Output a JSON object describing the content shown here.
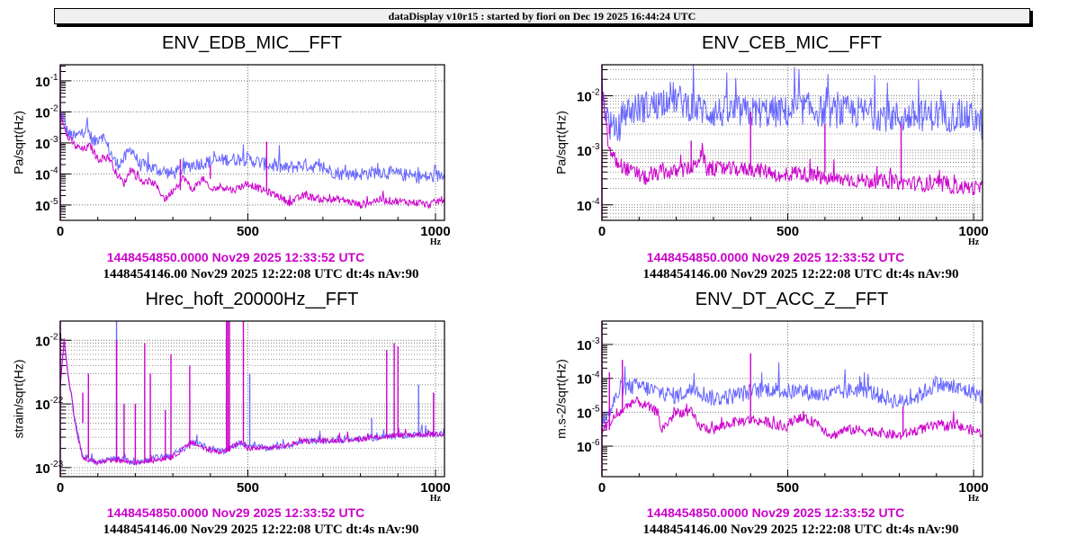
{
  "header": {
    "text": "dataDisplay v10r15 : started by fiori on Dec 19 2025 16:44:24 UTC"
  },
  "colors": {
    "reference": "#6666ff",
    "current": "#cc00cc"
  },
  "panels": [
    {
      "title": "ENV_EDB_MIC__FFT",
      "time_magenta": "1448454850.0000 Nov29 2025 12:33:52 UTC",
      "time_black": "1448454146.00 Nov29 2025 12:22:08 UTC dt:4s nAv:90"
    },
    {
      "title": "ENV_CEB_MIC__FFT",
      "time_magenta": "1448454850.0000 Nov29 2025 12:33:52 UTC",
      "time_black": "1448454146.00 Nov29 2025 12:22:08 UTC dt:4s nAv:90"
    },
    {
      "title": "Hrec_hoft_20000Hz__FFT",
      "time_magenta": "1448454850.0000 Nov29 2025 12:33:52 UTC",
      "time_black": "1448454146.00 Nov29 2025 12:22:08 UTC dt:4s nAv:90"
    },
    {
      "title": "ENV_DT_ACC_Z__FFT",
      "time_magenta": "1448454850.0000 Nov29 2025 12:33:52 UTC",
      "time_black": "1448454146.00 Nov29 2025 12:22:08 UTC dt:4s nAv:90"
    }
  ],
  "chart_data": [
    {
      "type": "line",
      "title": "ENV_EDB_MIC__FFT",
      "xlabel": "Hz",
      "ylabel": "Pa/sqrt(Hz)",
      "xlim": [
        0,
        1024
      ],
      "ylim": [
        3.2e-06,
        0.33
      ],
      "log_y": true,
      "xticks": [
        0,
        500,
        1000
      ],
      "yticks_exp": [
        -1,
        -2,
        -3,
        -4,
        -5
      ],
      "grid": "decades",
      "series": [
        {
          "color": "#6666ff",
          "points": [
            [
              0,
              0.01
            ],
            [
              10,
              0.005
            ],
            [
              20,
              0.002
            ],
            [
              40,
              0.0015
            ],
            [
              70,
              0.003
            ],
            [
              90,
              0.001
            ],
            [
              110,
              0.002
            ],
            [
              130,
              0.0006
            ],
            [
              150,
              0.0002
            ],
            [
              170,
              0.0003
            ],
            [
              190,
              0.0007
            ],
            [
              210,
              0.0002
            ],
            [
              250,
              0.00015
            ],
            [
              300,
              0.0001
            ],
            [
              350,
              0.0002
            ],
            [
              400,
              0.00025
            ],
            [
              450,
              0.0003
            ],
            [
              500,
              0.0003
            ],
            [
              550,
              0.0002
            ],
            [
              600,
              0.00015
            ],
            [
              650,
              0.0002
            ],
            [
              700,
              0.00015
            ],
            [
              750,
              0.0001
            ],
            [
              800,
              0.0001
            ],
            [
              850,
              0.00012
            ],
            [
              900,
              0.0001
            ],
            [
              950,
              8e-05
            ],
            [
              1000,
              8e-05
            ],
            [
              1020,
              0.0001
            ]
          ],
          "lines": []
        },
        {
          "color": "#cc00cc",
          "points": [
            [
              0,
              0.015
            ],
            [
              10,
              0.003
            ],
            [
              20,
              0.0015
            ],
            [
              40,
              0.0008
            ],
            [
              60,
              0.0006
            ],
            [
              80,
              0.0008
            ],
            [
              100,
              0.0003
            ],
            [
              130,
              0.00035
            ],
            [
              150,
              0.0001
            ],
            [
              170,
              5e-05
            ],
            [
              190,
              0.00015
            ],
            [
              210,
              6e-05
            ],
            [
              250,
              5e-05
            ],
            [
              280,
              1.5e-05
            ],
            [
              300,
              3e-05
            ],
            [
              330,
              8e-05
            ],
            [
              350,
              3e-05
            ],
            [
              380,
              7e-05
            ],
            [
              400,
              3e-05
            ],
            [
              430,
              4e-05
            ],
            [
              460,
              3e-05
            ],
            [
              500,
              5e-05
            ],
            [
              540,
              3e-05
            ],
            [
              580,
              2e-05
            ],
            [
              610,
              1.2e-05
            ],
            [
              650,
              2e-05
            ],
            [
              700,
              1.5e-05
            ],
            [
              750,
              1.5e-05
            ],
            [
              800,
              1e-05
            ],
            [
              850,
              1.5e-05
            ],
            [
              900,
              1.3e-05
            ],
            [
              950,
              1.2e-05
            ],
            [
              980,
              1e-05
            ],
            [
              1020,
              1.5e-05
            ]
          ],
          "lines": [
            [
              550,
              0.0011
            ],
            [
              400,
              0.0002
            ],
            [
              320,
              0.0003
            ]
          ]
        }
      ]
    },
    {
      "type": "line",
      "title": "ENV_CEB_MIC__FFT",
      "xlabel": "Hz",
      "ylabel": "Pa/sqrt(Hz)",
      "xlim": [
        0,
        1024
      ],
      "ylim": [
        5.2e-05,
        0.037
      ],
      "log_y": true,
      "xticks": [
        0,
        500,
        1000
      ],
      "yticks_exp": [
        -2,
        -3,
        -4
      ],
      "grid": "minor",
      "series": [
        {
          "color": "#6666ff",
          "points": [
            [
              0,
              0.01
            ],
            [
              20,
              0.003
            ],
            [
              40,
              0.002
            ],
            [
              60,
              0.005
            ],
            [
              100,
              0.006
            ],
            [
              150,
              0.007
            ],
            [
              180,
              0.01
            ],
            [
              250,
              0.006
            ],
            [
              300,
              0.005
            ],
            [
              400,
              0.005
            ],
            [
              500,
              0.005
            ],
            [
              550,
              0.006
            ],
            [
              600,
              0.005
            ],
            [
              700,
              0.005
            ],
            [
              800,
              0.004
            ],
            [
              900,
              0.0045
            ],
            [
              1000,
              0.004
            ],
            [
              1020,
              0.003
            ]
          ],
          "lines": []
        },
        {
          "color": "#cc00cc",
          "points": [
            [
              0,
              0.015
            ],
            [
              10,
              0.003
            ],
            [
              20,
              0.001
            ],
            [
              40,
              0.0006
            ],
            [
              80,
              0.0004
            ],
            [
              120,
              0.0003
            ],
            [
              160,
              0.0004
            ],
            [
              200,
              0.0004
            ],
            [
              250,
              0.0005
            ],
            [
              270,
              0.001
            ],
            [
              280,
              0.00045
            ],
            [
              400,
              0.00045
            ],
            [
              460,
              0.0004
            ],
            [
              480,
              0.0003
            ],
            [
              520,
              0.0004
            ],
            [
              600,
              0.0003
            ],
            [
              700,
              0.00028
            ],
            [
              800,
              0.00026
            ],
            [
              900,
              0.00023
            ],
            [
              1020,
              0.0002
            ]
          ],
          "lines": [
            [
              400,
              0.005
            ],
            [
              600,
              0.003
            ],
            [
              805,
              0.003
            ],
            [
              240,
              0.0015
            ],
            [
              20,
              0.002
            ]
          ]
        }
      ]
    },
    {
      "type": "line",
      "title": "Hrec_hoft_20000Hz__FFT",
      "xlabel": "Hz",
      "ylabel": "strain/sqrt(Hz)",
      "xlim": [
        0,
        1024
      ],
      "ylim": [
        7.2e-24,
        2e-21
      ],
      "log_y": true,
      "xticks": [
        0,
        500,
        1000
      ],
      "yticks_exp": [
        -21,
        -22,
        -23
      ],
      "grid": "minor",
      "series": [
        {
          "color": "#6666ff",
          "points": [
            [
              0,
              2e-22
            ],
            [
              10,
              1e-21
            ],
            [
              20,
              3e-22
            ],
            [
              40,
              5e-23
            ],
            [
              60,
              1.5e-23
            ],
            [
              100,
              1.2e-23
            ],
            [
              150,
              1.4e-23
            ],
            [
              200,
              1.2e-23
            ],
            [
              250,
              1.4e-23
            ],
            [
              300,
              1.6e-23
            ],
            [
              330,
              2e-23
            ],
            [
              350,
              2.5e-23
            ],
            [
              400,
              2e-23
            ],
            [
              440,
              1.8e-23
            ],
            [
              480,
              2.5e-23
            ],
            [
              500,
              2.2e-23
            ],
            [
              550,
              2e-23
            ],
            [
              600,
              2.2e-23
            ],
            [
              650,
              2.6e-23
            ],
            [
              700,
              2.6e-23
            ],
            [
              800,
              2.8e-23
            ],
            [
              850,
              3e-23
            ],
            [
              900,
              3.2e-23
            ],
            [
              1020,
              3.4e-23
            ]
          ],
          "lines": [
            [
              150,
              2e-21
            ],
            [
              505,
              3e-22
            ],
            [
              955,
              2e-22
            ],
            [
              995,
              1.5e-22
            ],
            [
              830,
              6e-23
            ]
          ]
        },
        {
          "color": "#cc00cc",
          "points": [
            [
              0,
              2e-22
            ],
            [
              10,
              1e-21
            ],
            [
              20,
              3e-22
            ],
            [
              40,
              5e-23
            ],
            [
              60,
              1.4e-23
            ],
            [
              100,
              1.2e-23
            ],
            [
              150,
              1.3e-23
            ],
            [
              200,
              1.2e-23
            ],
            [
              250,
              1.3e-23
            ],
            [
              300,
              1.5e-23
            ],
            [
              330,
              2e-23
            ],
            [
              350,
              2.5e-23
            ],
            [
              400,
              1.8e-23
            ],
            [
              440,
              1.8e-23
            ],
            [
              480,
              2.5e-23
            ],
            [
              500,
              2e-23
            ],
            [
              550,
              2e-23
            ],
            [
              600,
              2.2e-23
            ],
            [
              650,
              2.6e-23
            ],
            [
              700,
              2.6e-23
            ],
            [
              800,
              2.8e-23
            ],
            [
              850,
              3e-23
            ],
            [
              900,
              3.2e-23
            ],
            [
              1020,
              3.4e-23
            ]
          ],
          "lines": [
            [
              150,
              1e-21
            ],
            [
              225,
              9e-22
            ],
            [
              295,
              6e-22
            ],
            [
              345,
              4e-22
            ],
            [
              443,
              2e-20
            ],
            [
              447,
              2e-20
            ],
            [
              451,
              2e-20
            ],
            [
              488,
              2e-20
            ],
            [
              870,
              7e-22
            ],
            [
              890,
              9e-22
            ],
            [
              900,
              8e-22
            ],
            [
              995,
              1.5e-22
            ],
            [
              60,
              1.5e-22
            ],
            [
              75,
              3e-22
            ],
            [
              170,
              1e-22
            ],
            [
              240,
              3e-22
            ],
            [
              200,
              1e-22
            ],
            [
              280,
              8e-23
            ]
          ]
        }
      ]
    },
    {
      "type": "line",
      "title": "ENV_DT_ACC_Z__FFT",
      "xlabel": "Hz",
      "ylabel": "m.s-2/sqrt(Hz)",
      "xlim": [
        0,
        1024
      ],
      "ylim": [
        1.26e-07,
        0.0049
      ],
      "log_y": true,
      "xticks": [
        0,
        500,
        1000
      ],
      "yticks_exp": [
        -3,
        -4,
        -5,
        -6
      ],
      "grid": "decades",
      "series": [
        {
          "color": "#6666ff",
          "points": [
            [
              0,
              5e-06
            ],
            [
              20,
              1e-05
            ],
            [
              50,
              5e-05
            ],
            [
              100,
              6e-05
            ],
            [
              150,
              4e-05
            ],
            [
              200,
              3e-05
            ],
            [
              250,
              5e-05
            ],
            [
              300,
              2.5e-05
            ],
            [
              350,
              3e-05
            ],
            [
              400,
              4e-05
            ],
            [
              450,
              5e-05
            ],
            [
              500,
              4e-05
            ],
            [
              550,
              4e-05
            ],
            [
              600,
              3e-05
            ],
            [
              650,
              4e-05
            ],
            [
              700,
              5e-05
            ],
            [
              750,
              3e-05
            ],
            [
              800,
              2e-05
            ],
            [
              850,
              3e-05
            ],
            [
              900,
              7e-05
            ],
            [
              950,
              5e-05
            ],
            [
              1000,
              4e-05
            ],
            [
              1020,
              3e-05
            ]
          ],
          "lines": []
        },
        {
          "color": "#cc00cc",
          "points": [
            [
              0,
              3e-06
            ],
            [
              20,
              5e-06
            ],
            [
              50,
              1e-05
            ],
            [
              80,
              2e-05
            ],
            [
              100,
              2e-05
            ],
            [
              150,
              1e-05
            ],
            [
              160,
              3e-06
            ],
            [
              200,
              1e-05
            ],
            [
              240,
              1e-05
            ],
            [
              260,
              4e-06
            ],
            [
              300,
              3e-06
            ],
            [
              350,
              5e-06
            ],
            [
              400,
              6e-06
            ],
            [
              450,
              5e-06
            ],
            [
              480,
              3.5e-06
            ],
            [
              500,
              4e-06
            ],
            [
              520,
              7e-06
            ],
            [
              550,
              6e-06
            ],
            [
              580,
              5e-06
            ],
            [
              600,
              3e-06
            ],
            [
              620,
              2e-06
            ],
            [
              650,
              3e-06
            ],
            [
              700,
              3e-06
            ],
            [
              750,
              2.5e-06
            ],
            [
              800,
              2e-06
            ],
            [
              850,
              3e-06
            ],
            [
              900,
              4e-06
            ],
            [
              950,
              4e-06
            ],
            [
              1020,
              2.5e-06
            ]
          ],
          "lines": [
            [
              400,
              0.00055
            ],
            [
              55,
              0.00035
            ],
            [
              20,
              0.00015
            ],
            [
              810,
              1.5e-05
            ]
          ]
        }
      ]
    }
  ]
}
